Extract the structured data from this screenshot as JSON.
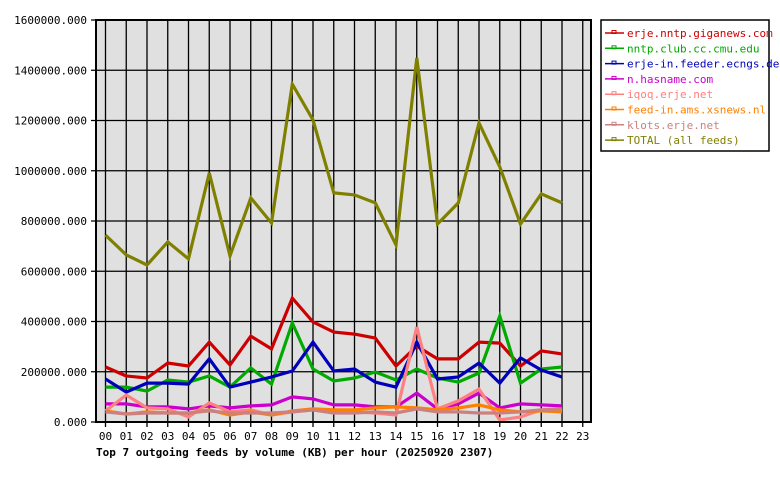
{
  "chart_data": {
    "type": "line",
    "title": "Top 7 outgoing feeds by volume (KB) per hour (20250920 2307)",
    "xlabel": "",
    "ylabel": "",
    "ylim": [
      0,
      1600000
    ],
    "grid": true,
    "legend_position": "right",
    "y_ticks": [
      "0.000",
      "200000.000",
      "400000.000",
      "600000.000",
      "800000.000",
      "1000000.000",
      "1200000.000",
      "1400000.000",
      "1600000.000"
    ],
    "categories": [
      "00",
      "01",
      "02",
      "03",
      "04",
      "05",
      "06",
      "07",
      "08",
      "09",
      "10",
      "11",
      "12",
      "13",
      "14",
      "15",
      "16",
      "17",
      "18",
      "19",
      "20",
      "21",
      "22",
      "23"
    ],
    "series": [
      {
        "name": "erje.nntp.giganews.com",
        "color": "#cc0000",
        "values": [
          219000,
          183000,
          175000,
          235000,
          223000,
          318000,
          227000,
          342000,
          291000,
          493000,
          398000,
          358000,
          350000,
          334000,
          223000,
          302000,
          251000,
          251000,
          318000,
          314000,
          223000,
          283000,
          271000
        ]
      },
      {
        "name": "nntp.club.cc.cmu.edu",
        "color": "#00aa00",
        "values": [
          139000,
          139000,
          123000,
          167000,
          159000,
          183000,
          139000,
          215000,
          151000,
          394000,
          211000,
          163000,
          175000,
          199000,
          167000,
          211000,
          175000,
          159000,
          195000,
          422000,
          155000,
          211000,
          219000
        ]
      },
      {
        "name": "erje-in.feeder.ecngs.de",
        "color": "#0000bb",
        "values": [
          171000,
          119000,
          155000,
          155000,
          151000,
          251000,
          139000,
          159000,
          179000,
          203000,
          318000,
          203000,
          211000,
          159000,
          139000,
          318000,
          171000,
          179000,
          235000,
          155000,
          255000,
          207000,
          179000
        ]
      },
      {
        "name": "n.hasname.com",
        "color": "#cc00cc",
        "values": [
          72000,
          72000,
          60000,
          60000,
          52000,
          64000,
          56000,
          64000,
          68000,
          100000,
          92000,
          68000,
          68000,
          60000,
          60000,
          115000,
          52000,
          72000,
          115000,
          56000,
          72000,
          68000,
          64000
        ]
      },
      {
        "name": "iqoq.erje.net",
        "color": "#ff8080",
        "values": [
          44000,
          107000,
          56000,
          52000,
          20000,
          76000,
          40000,
          48000,
          28000,
          40000,
          48000,
          36000,
          40000,
          36000,
          28000,
          378000,
          52000,
          84000,
          131000,
          8000,
          20000,
          48000,
          44000
        ]
      },
      {
        "name": "feed-in.ams.xsnews.nl",
        "color": "#ff8000",
        "values": [
          44000,
          32000,
          40000,
          36000,
          36000,
          48000,
          28000,
          40000,
          28000,
          44000,
          52000,
          48000,
          48000,
          56000,
          60000,
          56000,
          48000,
          56000,
          68000,
          48000,
          40000,
          44000,
          40000
        ]
      },
      {
        "name": "klots.erje.net",
        "color": "#cc8080",
        "values": [
          40000,
          32000,
          36000,
          36000,
          36000,
          44000,
          36000,
          36000,
          36000,
          40000,
          48000,
          36000,
          36000,
          40000,
          36000,
          52000,
          40000,
          40000,
          36000,
          36000,
          40000,
          48000,
          52000
        ]
      },
      {
        "name": "TOTAL (all feeds)",
        "color": "#808000",
        "values": [
          744000,
          665000,
          625000,
          717000,
          649000,
          991000,
          661000,
          892000,
          792000,
          1345000,
          1202000,
          912000,
          904000,
          872000,
          705000,
          1449000,
          788000,
          872000,
          1190000,
          1015000,
          788000,
          908000,
          872000
        ]
      }
    ]
  },
  "legend": {
    "items": [
      {
        "label": "erje.nntp.giganews.com",
        "color": "#cc0000"
      },
      {
        "label": "nntp.club.cc.cmu.edu",
        "color": "#00aa00"
      },
      {
        "label": "erje-in.feeder.ecngs.de",
        "color": "#0000bb"
      },
      {
        "label": "n.hasname.com",
        "color": "#cc00cc"
      },
      {
        "label": "iqoq.erje.net",
        "color": "#ff8080"
      },
      {
        "label": "feed-in.ams.xsnews.nl",
        "color": "#ff8000"
      },
      {
        "label": "klots.erje.net",
        "color": "#cc8080"
      },
      {
        "label": "TOTAL (all feeds)",
        "color": "#808000"
      }
    ]
  },
  "colors": {
    "plot_background": "#e0e0e0",
    "grid": "#000000",
    "page_background": "#ffffff"
  }
}
